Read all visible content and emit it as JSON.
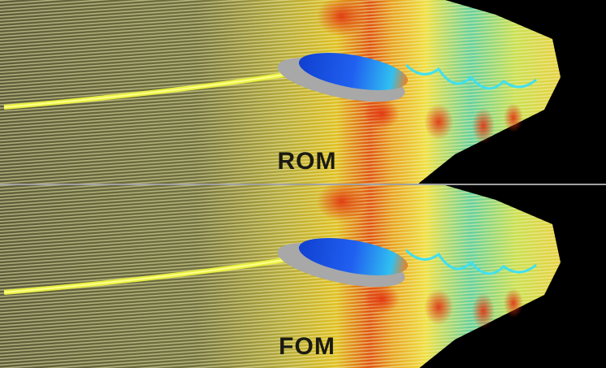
{
  "panels": [
    {
      "label": "ROM"
    },
    {
      "label": "FOM"
    }
  ]
}
